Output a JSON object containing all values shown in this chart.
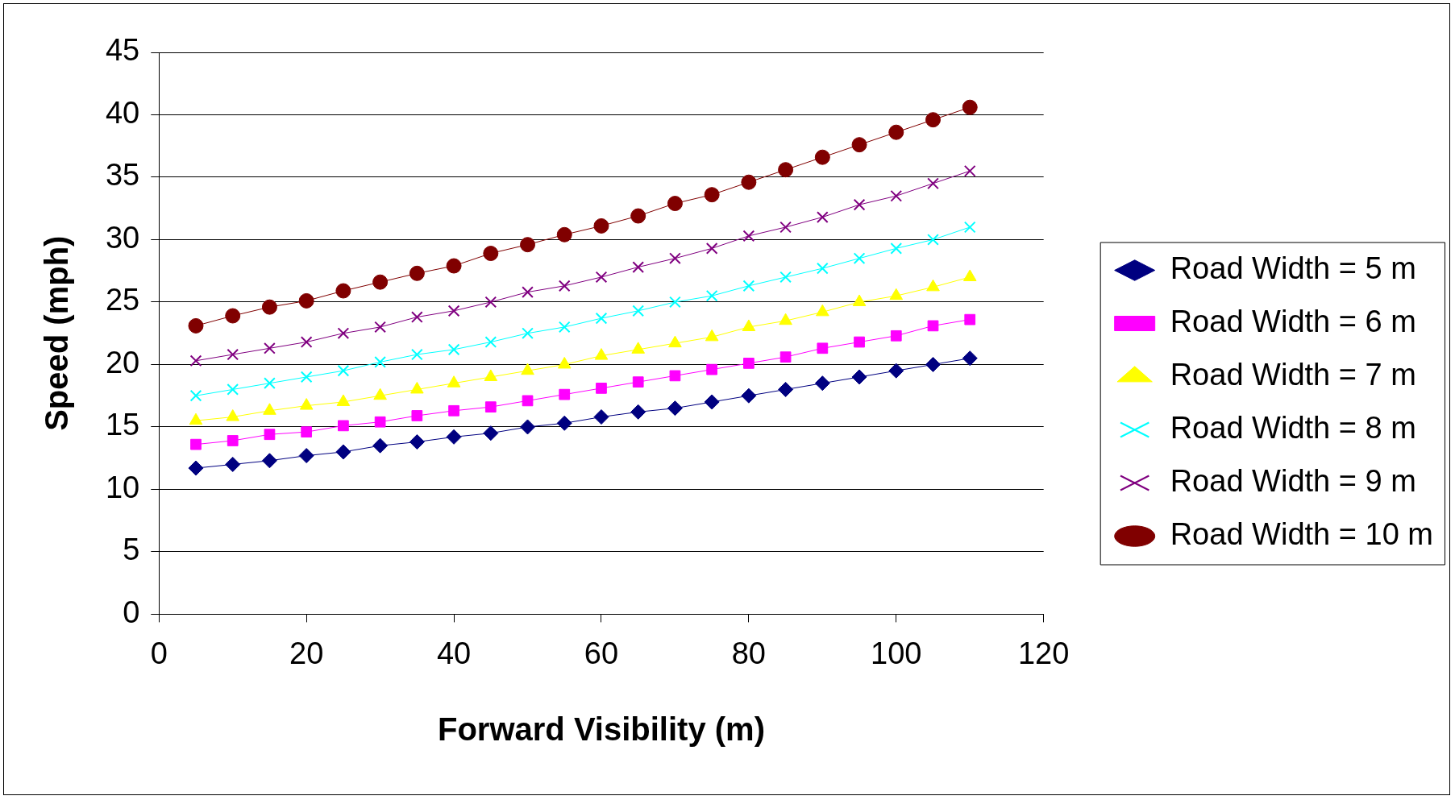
{
  "chart_data": {
    "type": "line",
    "xlabel": "Forward Visibility (m)",
    "ylabel": "Speed (mph)",
    "x": [
      5,
      10,
      15,
      20,
      25,
      30,
      35,
      40,
      45,
      50,
      55,
      60,
      65,
      70,
      75,
      80,
      85,
      90,
      95,
      100,
      105,
      110
    ],
    "xlim": [
      0,
      120
    ],
    "xticks": [
      0,
      20,
      40,
      60,
      80,
      100,
      120
    ],
    "ylim": [
      0,
      45
    ],
    "yticks": [
      0,
      5,
      10,
      15,
      20,
      25,
      30,
      35,
      40,
      45
    ],
    "grid": "y",
    "legend": "right",
    "line_style": "solid",
    "series": [
      {
        "name": "Road Width = 5 m",
        "color": "#000080",
        "marker": "diamond",
        "values": [
          11.7,
          12,
          12.3,
          12.7,
          13,
          13.5,
          13.8,
          14.2,
          14.5,
          15,
          15.3,
          15.8,
          16.2,
          16.5,
          17,
          17.5,
          18,
          18.5,
          19,
          19.5,
          20,
          20.5
        ]
      },
      {
        "name": "Road Width = 6 m",
        "color": "#ff00ff",
        "marker": "square",
        "values": [
          13.6,
          13.9,
          14.4,
          14.6,
          15.1,
          15.4,
          15.9,
          16.3,
          16.6,
          17.1,
          17.6,
          18.1,
          18.6,
          19.1,
          19.6,
          20.1,
          20.6,
          21.3,
          21.8,
          22.3,
          23.1,
          23.6
        ]
      },
      {
        "name": "Road Width = 7 m",
        "color": "#ffff00",
        "marker": "triangle",
        "values": [
          15.5,
          15.8,
          16.3,
          16.7,
          17,
          17.5,
          18,
          18.5,
          19,
          19.5,
          20,
          20.7,
          21.2,
          21.7,
          22.2,
          23,
          23.5,
          24.2,
          25,
          25.5,
          26.2,
          27
        ]
      },
      {
        "name": "Road Width = 8 m",
        "color": "#00ffff",
        "marker": "cross",
        "values": [
          17.5,
          18,
          18.5,
          19,
          19.5,
          20.2,
          20.8,
          21.2,
          21.8,
          22.5,
          23,
          23.7,
          24.3,
          25,
          25.5,
          26.3,
          27,
          27.7,
          28.5,
          29.3,
          30,
          31
        ]
      },
      {
        "name": "Road Width = 9 m",
        "color": "#800080",
        "marker": "cross",
        "values": [
          20.3,
          20.8,
          21.3,
          21.8,
          22.5,
          23,
          23.8,
          24.3,
          25,
          25.8,
          26.3,
          27,
          27.8,
          28.5,
          29.3,
          30.3,
          31,
          31.8,
          32.8,
          33.5,
          34.5,
          35.5
        ]
      },
      {
        "name": "Road Width = 10 m",
        "color": "#800000",
        "marker": "circle",
        "values": [
          23.1,
          23.9,
          24.6,
          25.1,
          25.9,
          26.6,
          27.3,
          27.9,
          28.9,
          29.6,
          30.4,
          31.1,
          31.9,
          32.9,
          33.6,
          34.6,
          35.6,
          36.6,
          37.6,
          38.6,
          39.6,
          40.6
        ]
      }
    ]
  }
}
